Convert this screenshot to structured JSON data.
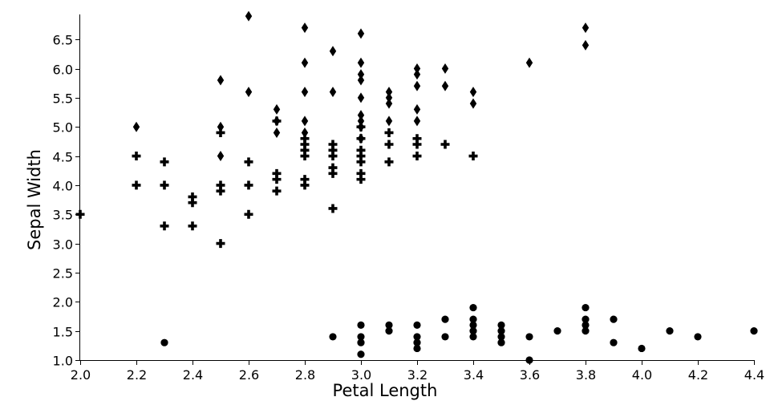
{
  "chart_data": {
    "type": "scatter",
    "xlabel": "Petal Length",
    "ylabel": "Sepal Width",
    "xlim": [
      2.0,
      4.4
    ],
    "ylim": [
      1.0,
      6.9
    ],
    "x_ticks": [
      "2.0",
      "2.2",
      "2.4",
      "2.6",
      "2.8",
      "3.0",
      "3.2",
      "3.4",
      "3.6",
      "3.8",
      "4.0",
      "4.2",
      "4.4"
    ],
    "y_ticks": [
      "1.0",
      "1.5",
      "2.0",
      "2.5",
      "3.0",
      "3.5",
      "4.0",
      "4.5",
      "5.0",
      "5.5",
      "6.0",
      "6.5"
    ],
    "grid": false,
    "legend": "none",
    "series": [
      {
        "marker": "circle",
        "color": "#000000",
        "points": [
          [
            2.3,
            1.3
          ],
          [
            2.9,
            1.4
          ],
          [
            3.0,
            1.1
          ],
          [
            3.0,
            1.3
          ],
          [
            3.0,
            1.4
          ],
          [
            3.0,
            1.6
          ],
          [
            3.1,
            1.5
          ],
          [
            3.1,
            1.6
          ],
          [
            3.2,
            1.2
          ],
          [
            3.2,
            1.3
          ],
          [
            3.2,
            1.4
          ],
          [
            3.2,
            1.6
          ],
          [
            3.3,
            1.4
          ],
          [
            3.3,
            1.7
          ],
          [
            3.4,
            1.4
          ],
          [
            3.4,
            1.5
          ],
          [
            3.4,
            1.6
          ],
          [
            3.4,
            1.7
          ],
          [
            3.4,
            1.9
          ],
          [
            3.5,
            1.3
          ],
          [
            3.5,
            1.4
          ],
          [
            3.5,
            1.5
          ],
          [
            3.5,
            1.6
          ],
          [
            3.6,
            1.0
          ],
          [
            3.6,
            1.4
          ],
          [
            3.7,
            1.5
          ],
          [
            3.8,
            1.5
          ],
          [
            3.8,
            1.6
          ],
          [
            3.8,
            1.7
          ],
          [
            3.8,
            1.9
          ],
          [
            3.9,
            1.3
          ],
          [
            3.9,
            1.7
          ],
          [
            4.0,
            1.2
          ],
          [
            4.1,
            1.5
          ],
          [
            4.2,
            1.4
          ],
          [
            4.4,
            1.5
          ]
        ]
      },
      {
        "marker": "plus",
        "color": "#000000",
        "points": [
          [
            2.0,
            3.5
          ],
          [
            2.2,
            4.0
          ],
          [
            2.2,
            4.5
          ],
          [
            2.3,
            3.3
          ],
          [
            2.3,
            4.0
          ],
          [
            2.3,
            4.4
          ],
          [
            2.4,
            3.3
          ],
          [
            2.4,
            3.7
          ],
          [
            2.4,
            3.8
          ],
          [
            2.5,
            3.0
          ],
          [
            2.5,
            3.9
          ],
          [
            2.5,
            4.0
          ],
          [
            2.5,
            4.9
          ],
          [
            2.6,
            3.5
          ],
          [
            2.6,
            4.0
          ],
          [
            2.6,
            4.4
          ],
          [
            2.7,
            3.9
          ],
          [
            2.7,
            4.1
          ],
          [
            2.7,
            4.2
          ],
          [
            2.7,
            5.1
          ],
          [
            2.8,
            4.0
          ],
          [
            2.8,
            4.1
          ],
          [
            2.8,
            4.5
          ],
          [
            2.8,
            4.6
          ],
          [
            2.8,
            4.7
          ],
          [
            2.8,
            4.8
          ],
          [
            2.9,
            3.6
          ],
          [
            2.9,
            4.2
          ],
          [
            2.9,
            4.3
          ],
          [
            2.9,
            4.5
          ],
          [
            2.9,
            4.6
          ],
          [
            2.9,
            4.7
          ],
          [
            3.0,
            4.1
          ],
          [
            3.0,
            4.2
          ],
          [
            3.0,
            4.4
          ],
          [
            3.0,
            4.5
          ],
          [
            3.0,
            4.6
          ],
          [
            3.0,
            4.8
          ],
          [
            3.0,
            5.0
          ],
          [
            3.1,
            4.4
          ],
          [
            3.1,
            4.7
          ],
          [
            3.1,
            4.9
          ],
          [
            3.2,
            4.5
          ],
          [
            3.2,
            4.7
          ],
          [
            3.2,
            4.8
          ],
          [
            3.3,
            4.7
          ],
          [
            3.4,
            4.5
          ]
        ]
      },
      {
        "marker": "diamond",
        "color": "#000000",
        "points": [
          [
            2.2,
            5.0
          ],
          [
            2.5,
            4.5
          ],
          [
            2.5,
            5.0
          ],
          [
            2.5,
            5.8
          ],
          [
            2.6,
            5.6
          ],
          [
            2.6,
            6.9
          ],
          [
            2.7,
            4.9
          ],
          [
            2.7,
            5.1
          ],
          [
            2.7,
            5.3
          ],
          [
            2.8,
            4.9
          ],
          [
            2.8,
            5.1
          ],
          [
            2.8,
            5.6
          ],
          [
            2.8,
            6.1
          ],
          [
            2.8,
            6.7
          ],
          [
            2.9,
            5.6
          ],
          [
            2.9,
            6.3
          ],
          [
            3.0,
            4.8
          ],
          [
            3.0,
            5.0
          ],
          [
            3.0,
            5.1
          ],
          [
            3.0,
            5.2
          ],
          [
            3.0,
            5.5
          ],
          [
            3.0,
            5.8
          ],
          [
            3.0,
            5.9
          ],
          [
            3.0,
            6.1
          ],
          [
            3.0,
            6.6
          ],
          [
            3.1,
            5.1
          ],
          [
            3.1,
            5.4
          ],
          [
            3.1,
            5.5
          ],
          [
            3.1,
            5.6
          ],
          [
            3.2,
            5.1
          ],
          [
            3.2,
            5.3
          ],
          [
            3.2,
            5.7
          ],
          [
            3.2,
            5.9
          ],
          [
            3.2,
            6.0
          ],
          [
            3.3,
            5.7
          ],
          [
            3.3,
            6.0
          ],
          [
            3.4,
            5.4
          ],
          [
            3.4,
            5.6
          ],
          [
            3.6,
            6.1
          ],
          [
            3.8,
            6.4
          ],
          [
            3.8,
            6.7
          ]
        ]
      }
    ]
  }
}
